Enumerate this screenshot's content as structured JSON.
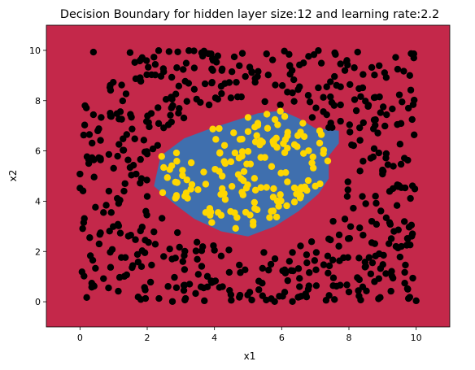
{
  "chart_data": {
    "type": "scatter",
    "title": "Decision Boundary for hidden layer size:12 and learning rate:2.2",
    "xlabel": "x1",
    "ylabel": "x2",
    "xlim": [
      -1,
      11
    ],
    "ylim": [
      -1,
      11
    ],
    "xticks": [
      0,
      2,
      4,
      6,
      8,
      10
    ],
    "yticks": [
      0,
      2,
      4,
      6,
      8,
      10
    ],
    "grid": false,
    "regions": [
      {
        "name": "class 0 region",
        "color": "#C4284A"
      },
      {
        "name": "class 1 region",
        "color": "#3F6FAE",
        "boundary": [
          [
            2.4,
            5.8
          ],
          [
            3.1,
            6.5
          ],
          [
            3.9,
            6.9
          ],
          [
            4.6,
            7.2
          ],
          [
            5.3,
            7.5
          ],
          [
            6.0,
            7.6
          ],
          [
            6.5,
            7.3
          ],
          [
            7.0,
            6.9
          ],
          [
            7.7,
            6.8
          ],
          [
            7.7,
            6.3
          ],
          [
            7.4,
            5.8
          ],
          [
            7.4,
            4.9
          ],
          [
            7.1,
            4.3
          ],
          [
            6.5,
            3.6
          ],
          [
            5.8,
            3.0
          ],
          [
            5.0,
            2.6
          ],
          [
            4.2,
            2.8
          ],
          [
            3.4,
            3.3
          ],
          [
            2.8,
            3.9
          ],
          [
            2.2,
            4.6
          ],
          [
            2.3,
            5.2
          ]
        ]
      }
    ],
    "series": [
      {
        "color": "#000000",
        "x": [],
        "y": []
      },
      {
        "color": "#FFD700",
        "x": [],
        "y": []
      }
    ]
  }
}
